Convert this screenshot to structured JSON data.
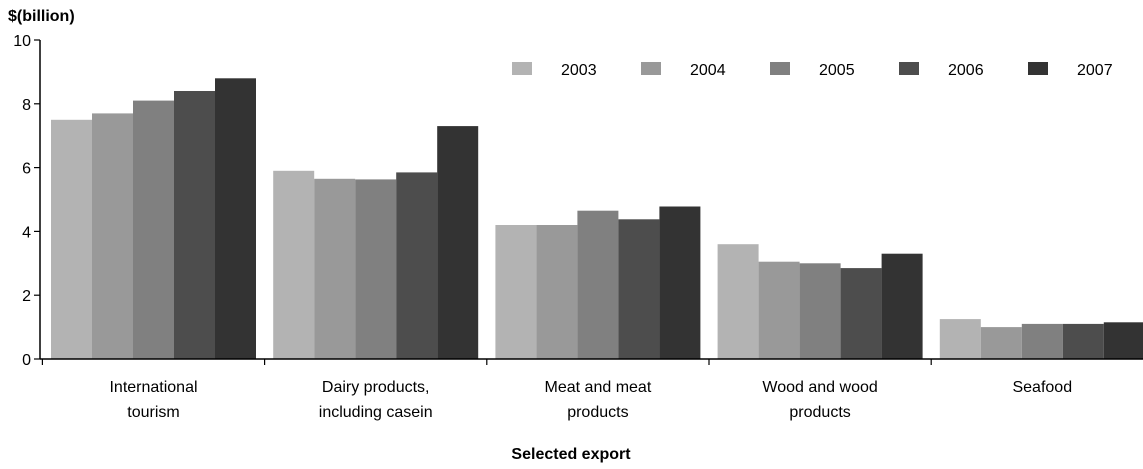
{
  "chart_data": {
    "type": "bar",
    "title": "",
    "ylabel": "$(billion)",
    "xlabel": "Selected export",
    "ylim": [
      0,
      10
    ],
    "yticks": [
      0,
      2,
      4,
      6,
      8,
      10
    ],
    "grid": false,
    "legend_position": "top-right",
    "categories": [
      [
        "International",
        "tourism"
      ],
      [
        "Dairy products,",
        "including casein"
      ],
      [
        "Meat and meat",
        "products"
      ],
      [
        "Wood and wood",
        "products"
      ],
      [
        "Seafood"
      ]
    ],
    "series": [
      {
        "name": "2003",
        "color": "#b3b3b3",
        "values": [
          7.5,
          5.9,
          4.2,
          3.6,
          1.25
        ]
      },
      {
        "name": "2004",
        "color": "#999999",
        "values": [
          7.7,
          5.65,
          4.2,
          3.05,
          1.0
        ]
      },
      {
        "name": "2005",
        "color": "#808080",
        "values": [
          8.1,
          5.63,
          4.65,
          3.0,
          1.1
        ]
      },
      {
        "name": "2006",
        "color": "#4d4d4d",
        "values": [
          8.4,
          5.85,
          4.38,
          2.85,
          1.1
        ]
      },
      {
        "name": "2007",
        "color": "#333333",
        "values": [
          8.8,
          7.3,
          4.78,
          3.3,
          1.15
        ]
      }
    ]
  }
}
